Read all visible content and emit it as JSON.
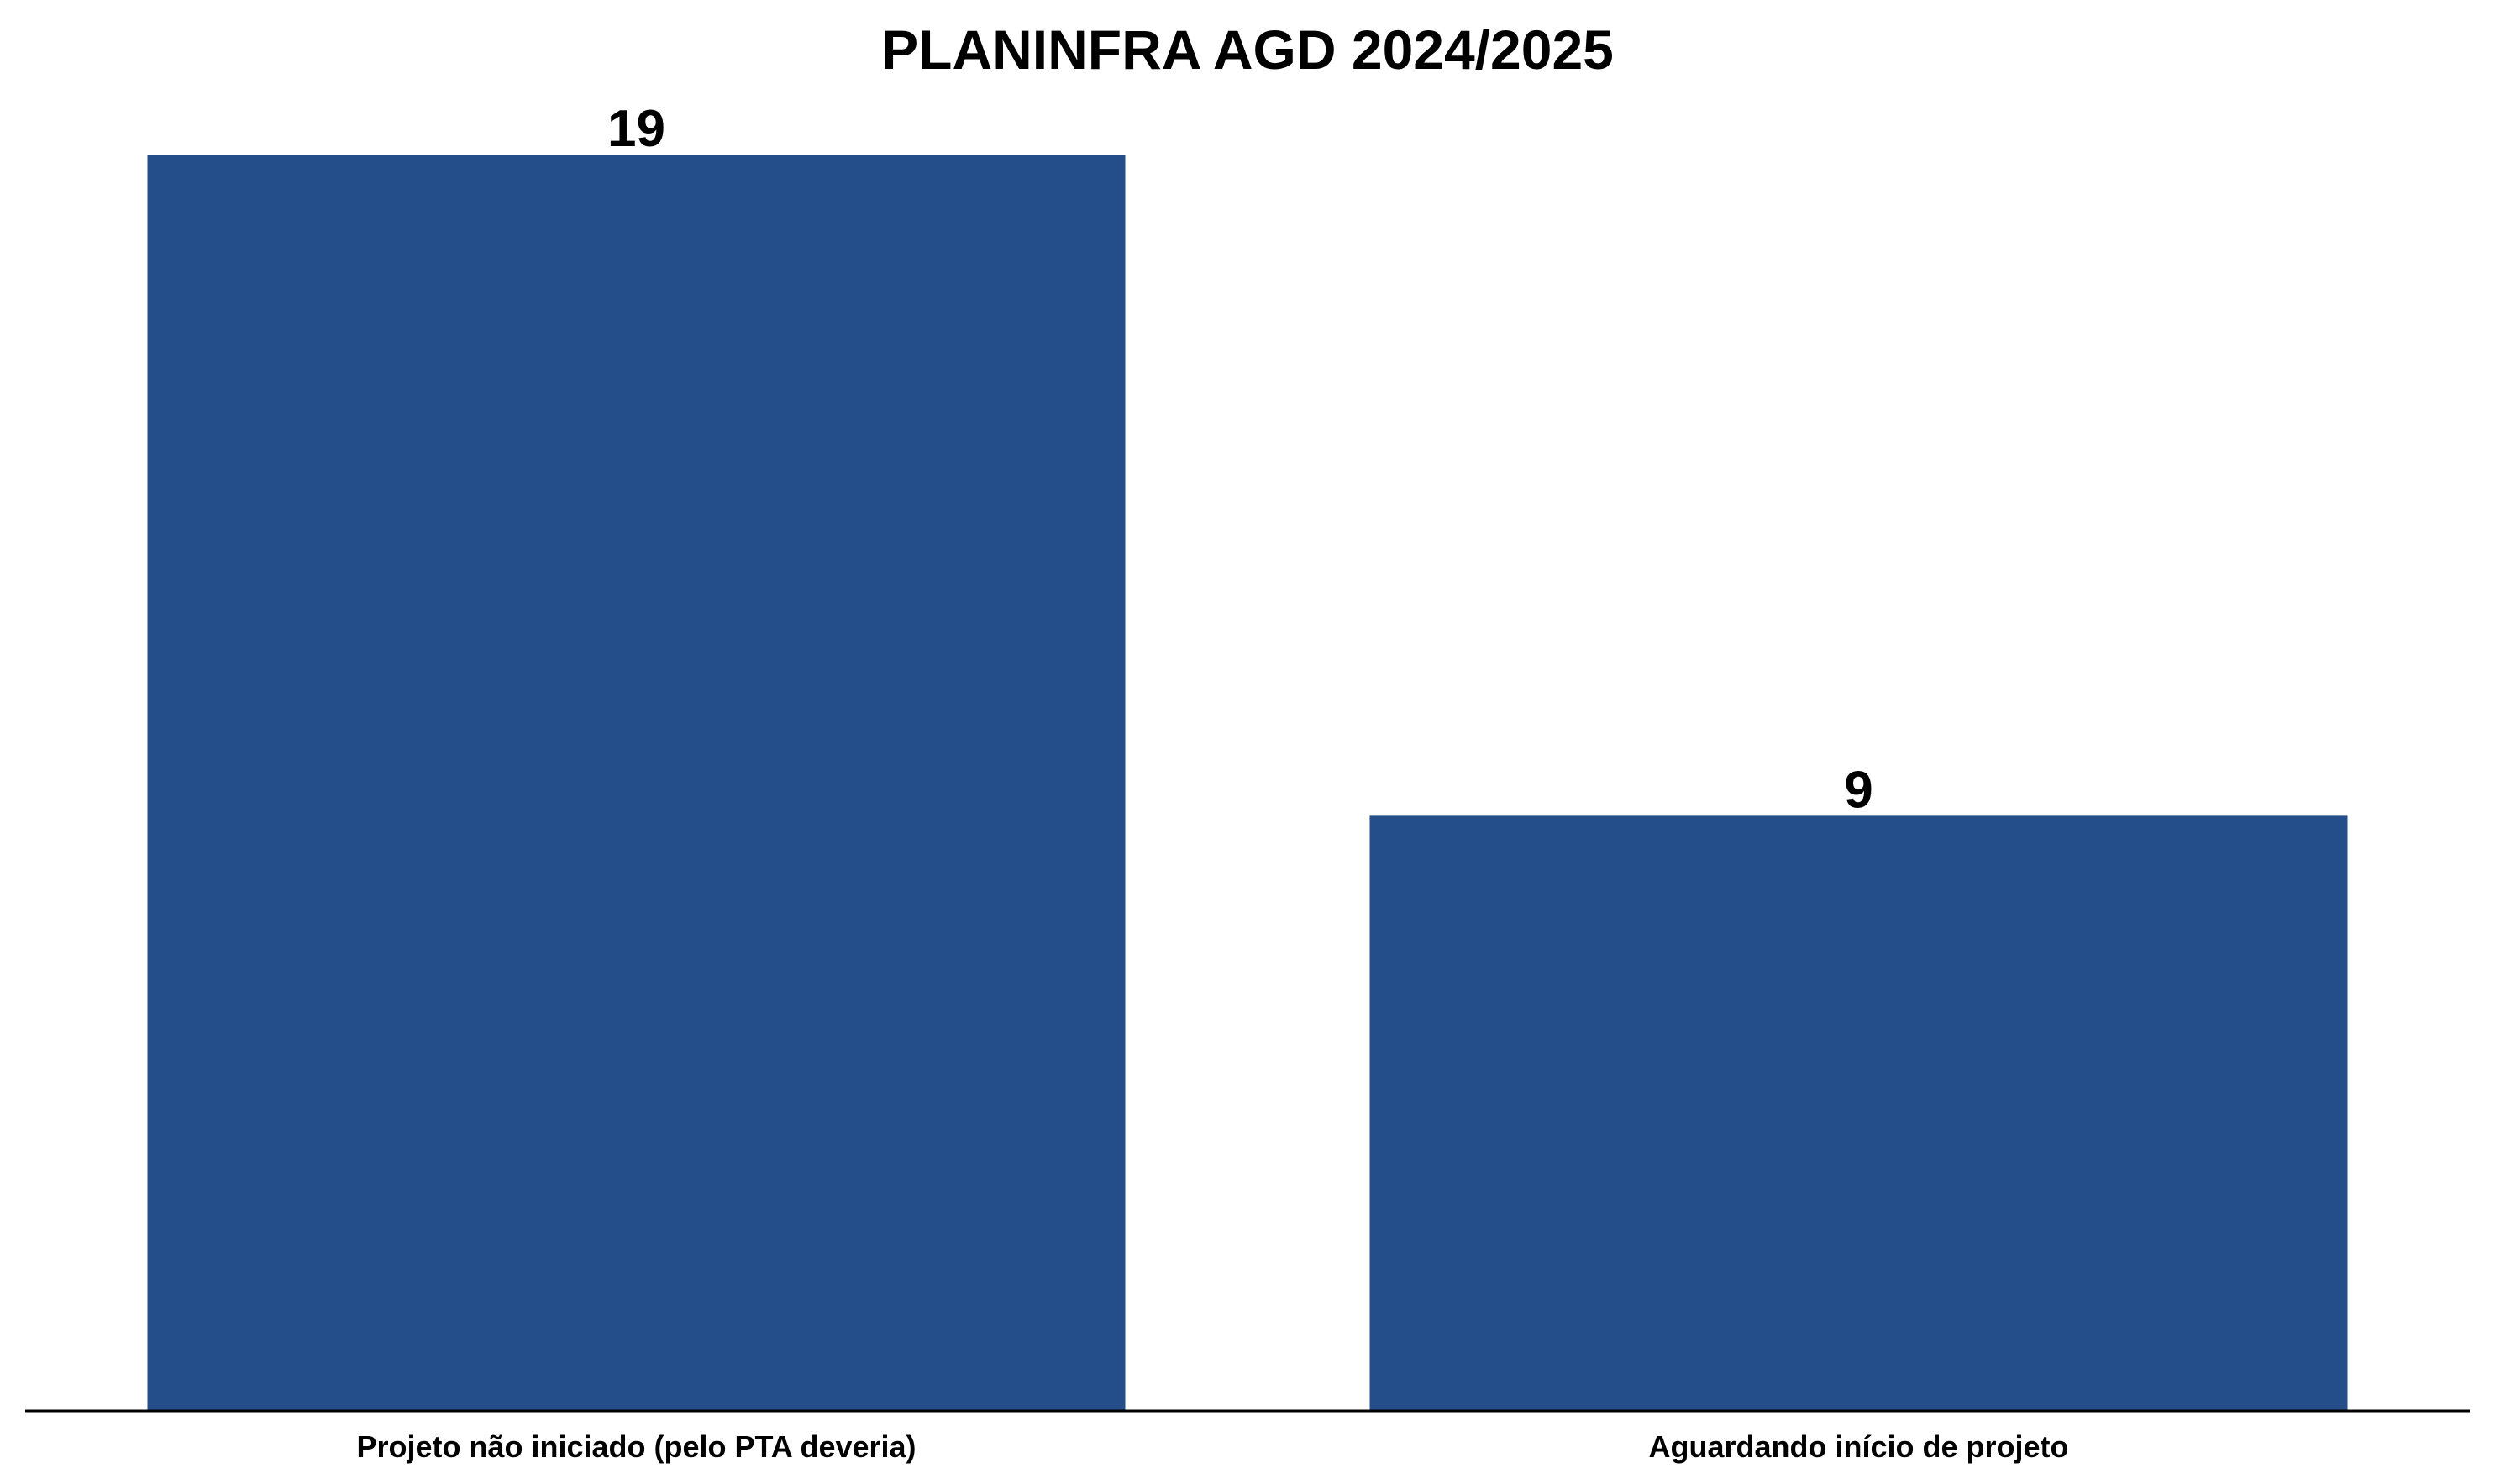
{
  "chart_data": {
    "type": "bar",
    "title": "PLANINFRA AGD 2024/2025",
    "xlabel": "",
    "ylabel": "",
    "categories": [
      "Projeto não iniciado (pelo PTA deveria)",
      "Aguardando início de projeto"
    ],
    "values": [
      19,
      9
    ],
    "data_labels": [
      "19",
      "9"
    ],
    "ylim": [
      0,
      20
    ],
    "grid": false,
    "legend": "none",
    "bar_color": "#234e8a",
    "axis_color": "#000000"
  }
}
